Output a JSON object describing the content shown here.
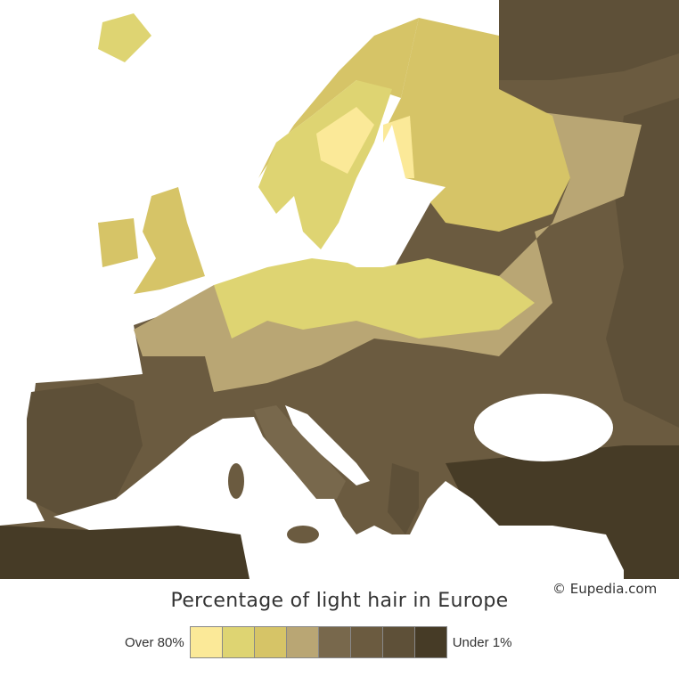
{
  "title": "Percentage of light hair in Europe",
  "copyright": "© Eupedia.com",
  "legend": {
    "high_label": "Over 80%",
    "low_label": "Under 1%",
    "colors": [
      "#fbe998",
      "#ded472",
      "#d6c467",
      "#b9a674",
      "#78684c",
      "#6b5b40",
      "#5e5038",
      "#463b26"
    ]
  }
}
